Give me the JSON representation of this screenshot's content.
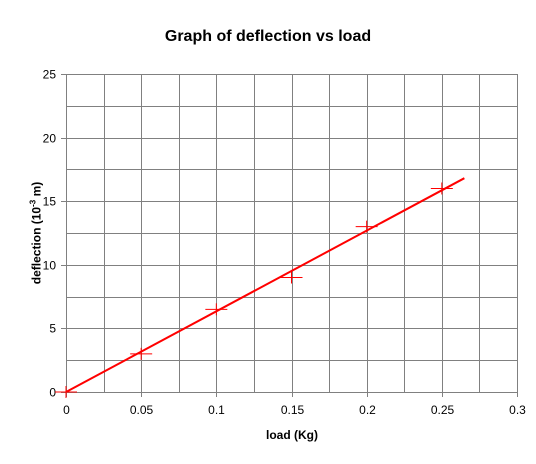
{
  "chart_data": {
    "type": "scatter",
    "title": "Graph of deflection vs load",
    "xlabel": "load (Kg)",
    "ylabel": {
      "prefix": "deflection (10",
      "superscript": "-3",
      "suffix": " m)"
    },
    "xlim": [
      0,
      0.3
    ],
    "ylim": [
      0,
      25
    ],
    "x_ticks": [
      "0",
      "0.05",
      "0.1",
      "0.15",
      "0.2",
      "0.25",
      "0.3"
    ],
    "y_ticks": [
      "0",
      "5",
      "10",
      "15",
      "20",
      "25"
    ],
    "grid": true,
    "legend": "none",
    "series": [
      {
        "marker": "plus",
        "color": "#ff0000",
        "points": [
          {
            "x": 0,
            "y": 0
          },
          {
            "x": 0.05,
            "y": 3
          },
          {
            "x": 0.1,
            "y": 6.5
          },
          {
            "x": 0.15,
            "y": 9
          },
          {
            "x": 0.2,
            "y": 13
          },
          {
            "x": 0.25,
            "y": 16
          }
        ]
      }
    ],
    "trendline": {
      "type": "linear",
      "color": "#ff0000",
      "x_range": [
        0,
        0.265
      ],
      "slope": 63.43,
      "intercept": 0
    }
  }
}
